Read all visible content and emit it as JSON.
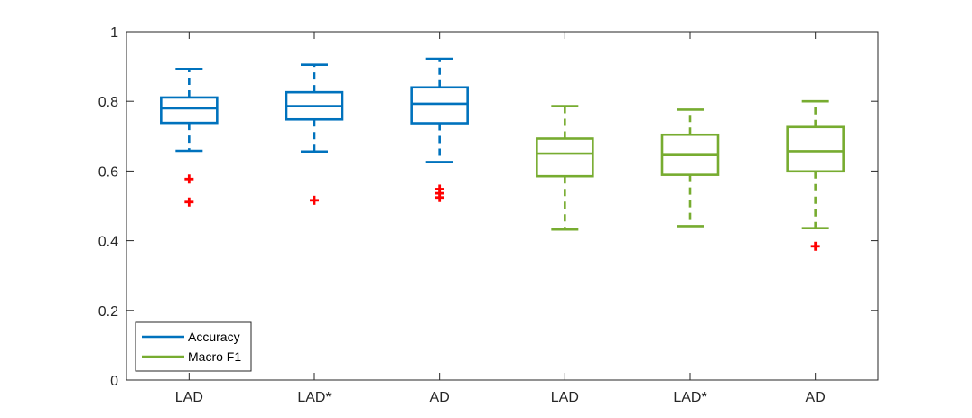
{
  "chart_data": {
    "type": "boxplot",
    "title": "",
    "xlabel": "",
    "ylabel": "",
    "ylim": [
      0,
      1
    ],
    "yticks": [
      0,
      0.2,
      0.4,
      0.6,
      0.8,
      1
    ],
    "ytick_labels": [
      "0",
      "0.2",
      "0.4",
      "0.6",
      "0.8",
      "1"
    ],
    "categories": [
      "LAD",
      "LAD*",
      "AD",
      "LAD",
      "LAD*",
      "AD"
    ],
    "grid": false,
    "legend_position": "bottom-left",
    "series": [
      {
        "name": "Accuracy",
        "color": "#0072BD",
        "boxes": [
          {
            "category_index": 0,
            "whisker_low": 0.658,
            "q1": 0.738,
            "median": 0.78,
            "q3": 0.811,
            "whisker_high": 0.893,
            "outliers": [
              0.577,
              0.511
            ]
          },
          {
            "category_index": 1,
            "whisker_low": 0.656,
            "q1": 0.748,
            "median": 0.786,
            "q3": 0.826,
            "whisker_high": 0.905,
            "outliers": [
              0.516
            ]
          },
          {
            "category_index": 2,
            "whisker_low": 0.626,
            "q1": 0.737,
            "median": 0.793,
            "q3": 0.84,
            "whisker_high": 0.922,
            "outliers": [
              0.548,
              0.536,
              0.524
            ]
          }
        ]
      },
      {
        "name": "Macro F1",
        "color": "#77AC30",
        "boxes": [
          {
            "category_index": 3,
            "whisker_low": 0.432,
            "q1": 0.585,
            "median": 0.65,
            "q3": 0.693,
            "whisker_high": 0.786,
            "outliers": []
          },
          {
            "category_index": 4,
            "whisker_low": 0.442,
            "q1": 0.589,
            "median": 0.646,
            "q3": 0.704,
            "whisker_high": 0.776,
            "outliers": []
          },
          {
            "category_index": 5,
            "whisker_low": 0.436,
            "q1": 0.599,
            "median": 0.657,
            "q3": 0.726,
            "whisker_high": 0.8,
            "outliers": [
              0.384
            ]
          }
        ]
      }
    ],
    "outlier_color": "#FF0000",
    "legend": [
      "Accuracy",
      "Macro F1"
    ]
  }
}
